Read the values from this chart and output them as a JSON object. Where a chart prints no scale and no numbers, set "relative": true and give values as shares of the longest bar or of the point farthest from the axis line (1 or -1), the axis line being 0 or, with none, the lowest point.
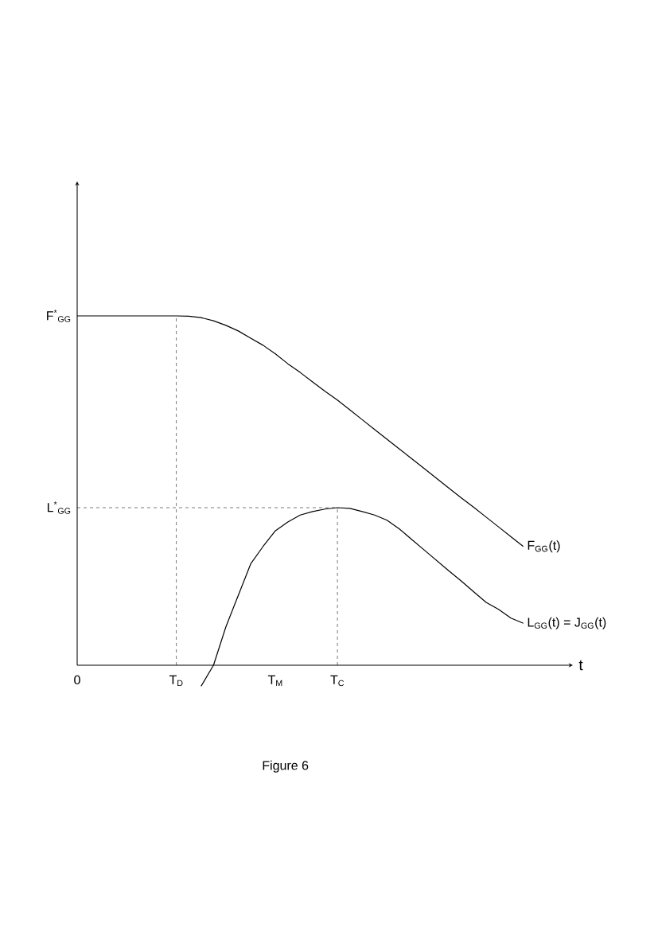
{
  "chart_data": {
    "type": "line",
    "relative": true,
    "xlabel": "t",
    "categories": [
      "0",
      null,
      null,
      null,
      null,
      null,
      null,
      null,
      "T$_{D}$",
      null,
      null,
      null,
      null,
      null,
      null,
      null,
      "T$_{M}$",
      null,
      null,
      null,
      null,
      "T$_{C}$",
      null,
      null,
      null,
      null,
      null,
      null,
      null,
      null,
      null,
      null,
      null,
      null,
      null,
      null,
      null,
      null,
      null,
      null,
      null
    ],
    "series": [
      {
        "name": "F$_{GG}$(t)",
        "color": "#000000",
        "values": [
          1,
          1,
          1,
          1,
          1,
          1,
          1,
          1,
          1,
          0.999,
          0.995,
          0.986,
          0.973,
          0.957,
          0.936,
          0.916,
          0.891,
          0.863,
          0.838,
          0.811,
          0.784,
          0.759,
          0.731,
          0.703,
          0.675,
          0.647,
          0.619,
          0.591,
          0.563,
          0.535,
          0.507,
          0.479,
          0.452,
          0.424,
          0.396,
          0.368,
          0.34,
          null,
          null,
          null,
          null
        ]
      },
      {
        "name": "L$_{GG}$(t) = J$_{GG}$(t)",
        "color": "#000000",
        "values": [
          null,
          null,
          null,
          null,
          null,
          null,
          null,
          null,
          null,
          null,
          -0.06,
          0.0,
          0.11,
          0.2,
          0.29,
          0.34,
          0.385,
          0.41,
          0.43,
          0.44,
          0.447,
          0.451,
          0.449,
          0.44,
          0.43,
          0.415,
          0.39,
          0.36,
          0.33,
          0.3,
          0.27,
          0.241,
          0.21,
          0.18,
          0.16,
          0.135,
          0.12,
          null,
          null,
          null,
          null
        ]
      }
    ],
    "ref_lines": [
      {
        "axis": "x",
        "value": "T$_{D}$",
        "line_style": "dashed"
      },
      {
        "axis": "x",
        "value": "T$_{C}$",
        "line_style": "dashed"
      },
      {
        "axis": "y",
        "value": 0.451,
        "line_style": "dashed"
      }
    ],
    "annotations": [
      {
        "text": "F$^{*}$$_{GG}$",
        "x": "0",
        "y": 1
      },
      {
        "text": "L$^{*}$$_{GG}$",
        "x": "0",
        "y": 0.451
      },
      "Figure 6"
    ],
    "line_style": "solid",
    "marker": "none",
    "grid": false,
    "legend": false
  }
}
